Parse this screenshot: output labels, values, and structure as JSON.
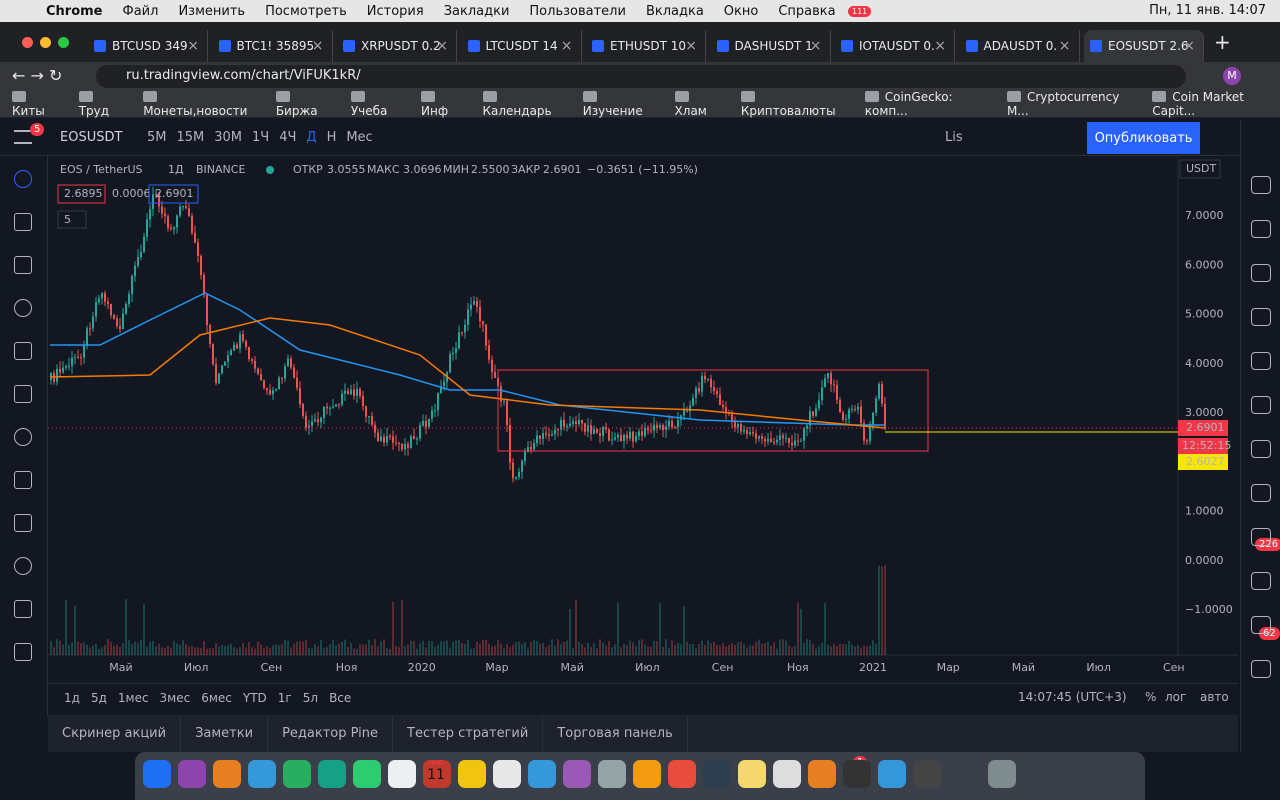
{
  "menubar": {
    "app": "Chrome",
    "menus": [
      "Файл",
      "Изменить",
      "Посмотреть",
      "История",
      "Закладки",
      "Пользователи",
      "Вкладка",
      "Окно",
      "Справка"
    ],
    "badge": "111",
    "clock": "Пн, 11 янв. 14:07"
  },
  "tabs": [
    "BTCUSD 349",
    "BTC1! 35895",
    "XRPUSDT 0.2",
    "LTCUSDT 14",
    "ETHUSDT 10",
    "DASHUSDT 1",
    "IOTAUSDT 0.",
    "ADAUSDT 0.",
    "EOSUSDT 2.6"
  ],
  "address": {
    "url": "ru.tradingview.com/chart/ViFUK1kR/",
    "avatar": "M"
  },
  "bookmarks": [
    "Киты",
    "Труд",
    "Монеты,новости",
    "Биржа",
    "Учеба",
    "Инф",
    "Календарь",
    "Изучение",
    "Хлам",
    "Криптовалюты",
    "CoinGecko: комп...",
    "Cryptocurrency M...",
    "Coin Market Capit..."
  ],
  "toolbar": {
    "badge": "5",
    "symbol": "EOSUSDT",
    "intervals": [
      "5М",
      "15М",
      "30М",
      "1Ч",
      "4Ч",
      "Д",
      "Н",
      "Мес"
    ],
    "layout": "Lis",
    "publish": "Опубликовать"
  },
  "legend": {
    "pair": "EOS / TetherUS",
    "interval": "1Д",
    "exchange": "BINANCE",
    "ohlc": [
      [
        "ОТКР",
        "3.0555"
      ],
      [
        "МАКС",
        "3.0696"
      ],
      [
        "МИН",
        "2.5500"
      ],
      [
        "ЗАКР",
        "2.6901"
      ]
    ],
    "change": "−0.3651 (−11.95%)",
    "bid": "2.6895",
    "spread": "0.0006",
    "ask": "2.6901",
    "indicators": "5"
  },
  "price_axis": {
    "currency": "USDT",
    "ticks": [
      "7.0000",
      "6.0000",
      "5.0000",
      "4.0000",
      "3.0000",
      "2.0000",
      "1.0000",
      "0.0000",
      "−1.0000"
    ],
    "last": "2.6901",
    "countdown": "12:52:15",
    "line": "2.6027"
  },
  "time_axis": [
    "Май",
    "Июл",
    "Сен",
    "Ноя",
    "2020",
    "Мар",
    "Май",
    "Июл",
    "Сен",
    "Ноя",
    "2021",
    "Мар",
    "Май",
    "Июл",
    "Сен"
  ],
  "ranges": [
    "1д",
    "5д",
    "1мес",
    "3мес",
    "6мес",
    "YTD",
    "1г",
    "5л",
    "Все"
  ],
  "status": {
    "time": "14:07:45 (UTC+3)",
    "percent": "%",
    "log": "лог",
    "auto": "авто"
  },
  "bottom_tabs": [
    "Скринер акций",
    "Заметки",
    "Редактор Pine",
    "Тестер стратегий",
    "Торговая панель"
  ],
  "sidebar_badges": [
    "226",
    "62"
  ],
  "dock": {
    "calendar_month": "ЯНВ",
    "calendar_day": "11",
    "badge": "1"
  }
}
